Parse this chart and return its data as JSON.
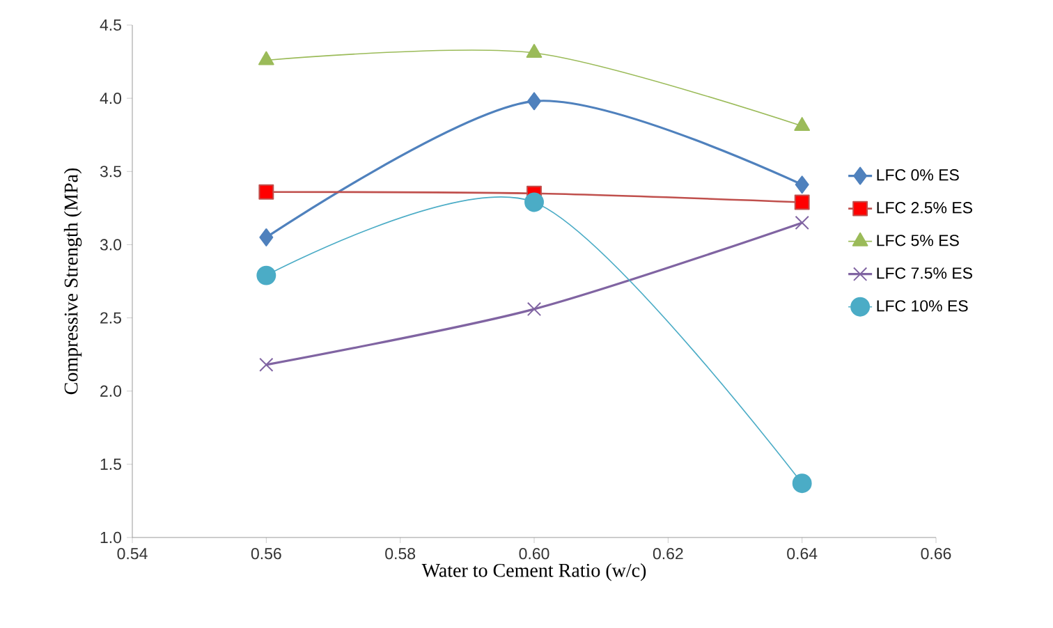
{
  "chart_data": {
    "type": "line",
    "xlabel": "Water to Cement Ratio (w/c)",
    "ylabel": "Compressive Strength (MPa)",
    "x": [
      0.56,
      0.6,
      0.64
    ],
    "series": [
      {
        "name": "LFC 0% ES",
        "color": "#4f81bd",
        "marker": "diamond",
        "values": [
          3.05,
          3.98,
          3.41
        ]
      },
      {
        "name": "LFC 2.5% ES",
        "color": "#c0504d",
        "marker": "square",
        "values": [
          3.36,
          3.35,
          3.29
        ]
      },
      {
        "name": "LFC 5% ES",
        "color": "#9bbb59",
        "marker": "triangle",
        "values": [
          4.26,
          4.31,
          3.81
        ]
      },
      {
        "name": "LFC 7.5% ES",
        "color": "#8064a2",
        "marker": "cross",
        "values": [
          2.18,
          2.56,
          3.15
        ]
      },
      {
        "name": "LFC 10% ES",
        "color": "#4bacc6",
        "marker": "circle",
        "values": [
          2.79,
          3.29,
          1.37
        ]
      }
    ],
    "xlim": [
      0.54,
      0.66
    ],
    "xticks": [
      {
        "value": 0.54,
        "label": "0.54"
      },
      {
        "value": 0.56,
        "label": "0.56"
      },
      {
        "value": 0.58,
        "label": "0.58"
      },
      {
        "value": 0.6,
        "label": "0.60"
      },
      {
        "value": 0.62,
        "label": "0.62"
      },
      {
        "value": 0.64,
        "label": "0.64"
      },
      {
        "value": 0.66,
        "label": "0.66"
      }
    ],
    "ylim": [
      1.0,
      4.5
    ],
    "yticks": [
      {
        "value": 1.0,
        "label": "1.0"
      },
      {
        "value": 1.5,
        "label": "1.5"
      },
      {
        "value": 2.0,
        "label": "2.0"
      },
      {
        "value": 2.5,
        "label": "2.5"
      },
      {
        "value": 3.0,
        "label": "3.0"
      },
      {
        "value": 3.5,
        "label": "3.5"
      },
      {
        "value": 4.0,
        "label": "4.0"
      },
      {
        "value": 4.5,
        "label": "4.5"
      }
    ],
    "grid": false,
    "legend": "right",
    "line_style": "solid"
  }
}
